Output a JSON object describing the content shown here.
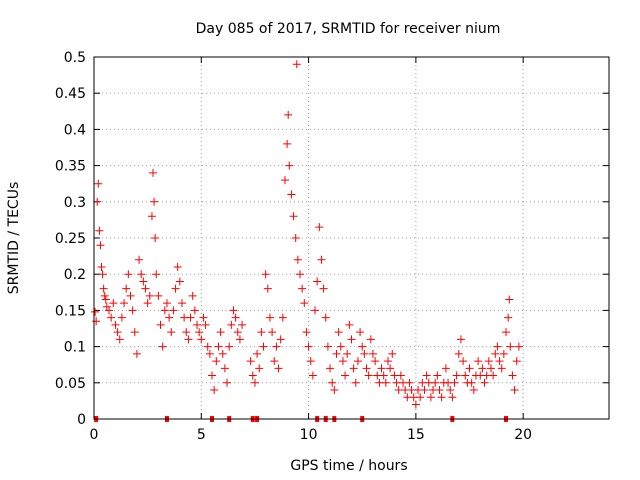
{
  "chart_data": {
    "type": "scatter",
    "title": "Day 085 of 2017, SRMTID for receiver nium",
    "xlabel": "GPS time / hours",
    "ylabel": "SRMTID / TECUs",
    "xlim": [
      0,
      24
    ],
    "ylim": [
      0,
      0.5
    ],
    "xticks": [
      0,
      5,
      10,
      15,
      20
    ],
    "yticks": [
      0,
      0.05,
      0.1,
      0.15,
      0.2,
      0.25,
      0.3,
      0.35,
      0.4,
      0.45,
      0.5
    ],
    "ytick_labels": [
      "0",
      "0.05",
      "0.1",
      "0.15",
      "0.2",
      "0.25",
      "0.3",
      "0.35",
      "0.4",
      "0.45",
      "0.5"
    ],
    "marker": "+",
    "color": "#ff0000",
    "grid": true,
    "series": [
      {
        "name": "SRMTID",
        "points": [
          [
            0.05,
            0.148
          ],
          [
            0.1,
            0.135
          ],
          [
            0.15,
            0.3
          ],
          [
            0.2,
            0.325
          ],
          [
            0.25,
            0.26
          ],
          [
            0.3,
            0.24
          ],
          [
            0.35,
            0.21
          ],
          [
            0.4,
            0.2
          ],
          [
            0.45,
            0.18
          ],
          [
            0.5,
            0.17
          ],
          [
            0.55,
            0.165
          ],
          [
            0.6,
            0.155
          ],
          [
            0.7,
            0.15
          ],
          [
            0.8,
            0.14
          ],
          [
            0.9,
            0.16
          ],
          [
            1.0,
            0.13
          ],
          [
            1.1,
            0.12
          ],
          [
            1.2,
            0.11
          ],
          [
            1.3,
            0.14
          ],
          [
            1.4,
            0.16
          ],
          [
            1.5,
            0.18
          ],
          [
            1.6,
            0.2
          ],
          [
            1.7,
            0.17
          ],
          [
            1.8,
            0.15
          ],
          [
            1.9,
            0.12
          ],
          [
            2.0,
            0.09
          ],
          [
            2.1,
            0.22
          ],
          [
            2.2,
            0.2
          ],
          [
            2.3,
            0.19
          ],
          [
            2.4,
            0.18
          ],
          [
            2.5,
            0.16
          ],
          [
            2.6,
            0.17
          ],
          [
            2.7,
            0.28
          ],
          [
            2.75,
            0.34
          ],
          [
            2.8,
            0.3
          ],
          [
            2.85,
            0.25
          ],
          [
            2.9,
            0.2
          ],
          [
            3.0,
            0.17
          ],
          [
            3.1,
            0.13
          ],
          [
            3.2,
            0.1
          ],
          [
            3.3,
            0.15
          ],
          [
            3.4,
            0.16
          ],
          [
            3.5,
            0.14
          ],
          [
            3.6,
            0.12
          ],
          [
            3.7,
            0.15
          ],
          [
            3.8,
            0.18
          ],
          [
            3.9,
            0.21
          ],
          [
            4.0,
            0.19
          ],
          [
            4.1,
            0.16
          ],
          [
            4.2,
            0.14
          ],
          [
            4.3,
            0.12
          ],
          [
            4.4,
            0.11
          ],
          [
            4.5,
            0.14
          ],
          [
            4.6,
            0.17
          ],
          [
            4.7,
            0.15
          ],
          [
            4.8,
            0.13
          ],
          [
            4.9,
            0.12
          ],
          [
            5.0,
            0.11
          ],
          [
            5.1,
            0.14
          ],
          [
            5.2,
            0.13
          ],
          [
            5.3,
            0.1
          ],
          [
            5.4,
            0.09
          ],
          [
            5.5,
            0.06
          ],
          [
            5.6,
            0.04
          ],
          [
            5.7,
            0.08
          ],
          [
            5.8,
            0.1
          ],
          [
            5.9,
            0.12
          ],
          [
            6.0,
            0.09
          ],
          [
            6.1,
            0.07
          ],
          [
            6.2,
            0.05
          ],
          [
            6.3,
            0.1
          ],
          [
            6.4,
            0.13
          ],
          [
            6.5,
            0.15
          ],
          [
            6.6,
            0.14
          ],
          [
            6.7,
            0.12
          ],
          [
            6.8,
            0.11
          ],
          [
            6.9,
            0.13
          ],
          [
            7.3,
            0.08
          ],
          [
            7.4,
            0.06
          ],
          [
            7.5,
            0.05
          ],
          [
            7.6,
            0.09
          ],
          [
            7.7,
            0.07
          ],
          [
            7.8,
            0.12
          ],
          [
            7.9,
            0.1
          ],
          [
            8.0,
            0.2
          ],
          [
            8.1,
            0.18
          ],
          [
            8.2,
            0.14
          ],
          [
            8.3,
            0.12
          ],
          [
            8.4,
            0.08
          ],
          [
            8.5,
            0.1
          ],
          [
            8.6,
            0.07
          ],
          [
            8.7,
            0.11
          ],
          [
            8.8,
            0.14
          ],
          [
            8.9,
            0.33
          ],
          [
            9.0,
            0.38
          ],
          [
            9.05,
            0.42
          ],
          [
            9.1,
            0.35
          ],
          [
            9.2,
            0.31
          ],
          [
            9.3,
            0.28
          ],
          [
            9.4,
            0.25
          ],
          [
            9.45,
            0.49
          ],
          [
            9.5,
            0.22
          ],
          [
            9.6,
            0.2
          ],
          [
            9.7,
            0.18
          ],
          [
            9.8,
            0.16
          ],
          [
            9.9,
            0.12
          ],
          [
            10.0,
            0.1
          ],
          [
            10.1,
            0.08
          ],
          [
            10.2,
            0.06
          ],
          [
            10.3,
            0.15
          ],
          [
            10.4,
            0.19
          ],
          [
            10.5,
            0.265
          ],
          [
            10.6,
            0.22
          ],
          [
            10.7,
            0.18
          ],
          [
            10.8,
            0.14
          ],
          [
            10.9,
            0.1
          ],
          [
            11.0,
            0.07
          ],
          [
            11.1,
            0.05
          ],
          [
            11.2,
            0.04
          ],
          [
            11.3,
            0.09
          ],
          [
            11.4,
            0.12
          ],
          [
            11.5,
            0.1
          ],
          [
            11.6,
            0.08
          ],
          [
            11.7,
            0.06
          ],
          [
            11.8,
            0.09
          ],
          [
            11.9,
            0.13
          ],
          [
            12.0,
            0.11
          ],
          [
            12.1,
            0.07
          ],
          [
            12.2,
            0.05
          ],
          [
            12.3,
            0.08
          ],
          [
            12.4,
            0.12
          ],
          [
            12.5,
            0.1
          ],
          [
            12.6,
            0.09
          ],
          [
            12.7,
            0.07
          ],
          [
            12.8,
            0.06
          ],
          [
            12.9,
            0.11
          ],
          [
            13.0,
            0.09
          ],
          [
            13.1,
            0.08
          ],
          [
            13.2,
            0.06
          ],
          [
            13.3,
            0.05
          ],
          [
            13.4,
            0.07
          ],
          [
            13.5,
            0.06
          ],
          [
            13.6,
            0.05
          ],
          [
            13.7,
            0.08
          ],
          [
            13.8,
            0.07
          ],
          [
            13.9,
            0.09
          ],
          [
            14.0,
            0.06
          ],
          [
            14.1,
            0.05
          ],
          [
            14.2,
            0.04
          ],
          [
            14.3,
            0.06
          ],
          [
            14.4,
            0.05
          ],
          [
            14.5,
            0.04
          ],
          [
            14.6,
            0.03
          ],
          [
            14.7,
            0.05
          ],
          [
            14.8,
            0.04
          ],
          [
            14.9,
            0.03
          ],
          [
            15.0,
            0.02
          ],
          [
            15.1,
            0.04
          ],
          [
            15.2,
            0.03
          ],
          [
            15.3,
            0.05
          ],
          [
            15.4,
            0.04
          ],
          [
            15.5,
            0.06
          ],
          [
            15.6,
            0.05
          ],
          [
            15.7,
            0.03
          ],
          [
            15.8,
            0.04
          ],
          [
            15.9,
            0.05
          ],
          [
            16.0,
            0.06
          ],
          [
            16.1,
            0.04
          ],
          [
            16.2,
            0.03
          ],
          [
            16.3,
            0.05
          ],
          [
            16.4,
            0.07
          ],
          [
            16.5,
            0.05
          ],
          [
            16.6,
            0.04
          ],
          [
            16.7,
            0.03
          ],
          [
            16.8,
            0.05
          ],
          [
            16.9,
            0.06
          ],
          [
            17.0,
            0.09
          ],
          [
            17.1,
            0.11
          ],
          [
            17.2,
            0.08
          ],
          [
            17.3,
            0.06
          ],
          [
            17.4,
            0.05
          ],
          [
            17.5,
            0.07
          ],
          [
            17.6,
            0.05
          ],
          [
            17.7,
            0.04
          ],
          [
            17.8,
            0.06
          ],
          [
            17.9,
            0.08
          ],
          [
            18.0,
            0.06
          ],
          [
            18.1,
            0.07
          ],
          [
            18.2,
            0.05
          ],
          [
            18.3,
            0.06
          ],
          [
            18.4,
            0.08
          ],
          [
            18.5,
            0.07
          ],
          [
            18.6,
            0.06
          ],
          [
            18.7,
            0.09
          ],
          [
            18.8,
            0.1
          ],
          [
            18.9,
            0.08
          ],
          [
            19.0,
            0.07
          ],
          [
            19.1,
            0.09
          ],
          [
            19.2,
            0.12
          ],
          [
            19.3,
            0.14
          ],
          [
            19.35,
            0.165
          ],
          [
            19.4,
            0.1
          ],
          [
            19.5,
            0.06
          ],
          [
            19.6,
            0.04
          ],
          [
            19.7,
            0.08
          ],
          [
            19.8,
            0.1
          ]
        ]
      },
      {
        "name": "zero-value markers",
        "points": [
          [
            0.1,
            0
          ],
          [
            3.4,
            0
          ],
          [
            5.5,
            0
          ],
          [
            6.3,
            0
          ],
          [
            7.4,
            0
          ],
          [
            7.6,
            0
          ],
          [
            10.4,
            0
          ],
          [
            10.8,
            0
          ],
          [
            11.2,
            0
          ],
          [
            12.5,
            0
          ],
          [
            16.7,
            0
          ],
          [
            19.2,
            0
          ]
        ]
      }
    ]
  }
}
